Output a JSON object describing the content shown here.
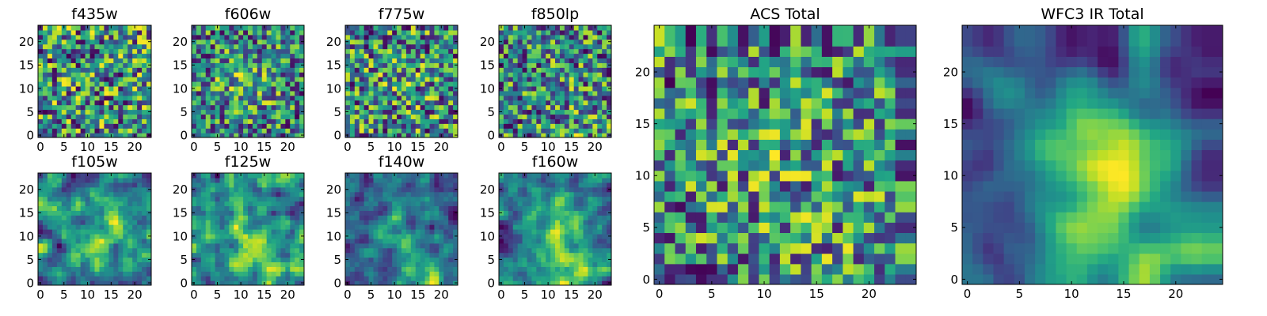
{
  "chart_data": [
    {
      "id": "f435w",
      "type": "heatmap",
      "title": "f435w",
      "grid": 24,
      "xticks": [
        0,
        5,
        10,
        15,
        20
      ],
      "yticks": [
        0,
        5,
        10,
        15,
        20
      ],
      "xlim": [
        -0.5,
        23.5
      ],
      "ylim": [
        -0.5,
        23.5
      ],
      "colormap": "viridis",
      "texture": "fine noise",
      "seed": 11,
      "smooth": 0,
      "center_boost": 0,
      "bottom_boost": 0
    },
    {
      "id": "f606w",
      "type": "heatmap",
      "title": "f606w",
      "grid": 24,
      "xticks": [
        0,
        5,
        10,
        15,
        20
      ],
      "yticks": [
        0,
        5,
        10,
        15,
        20
      ],
      "xlim": [
        -0.5,
        23.5
      ],
      "ylim": [
        -0.5,
        23.5
      ],
      "colormap": "viridis",
      "texture": "fine noise, faint central brightening",
      "seed": 23,
      "smooth": 0,
      "center_boost": 0.25,
      "bottom_boost": 0
    },
    {
      "id": "f775w",
      "type": "heatmap",
      "title": "f775w",
      "grid": 24,
      "xticks": [
        0,
        5,
        10,
        15,
        20
      ],
      "yticks": [
        0,
        5,
        10,
        15,
        20
      ],
      "xlim": [
        -0.5,
        23.5
      ],
      "ylim": [
        -0.5,
        23.5
      ],
      "colormap": "viridis",
      "texture": "fine noise",
      "seed": 37,
      "smooth": 0,
      "center_boost": 0.05,
      "bottom_boost": 0
    },
    {
      "id": "f850lp",
      "type": "heatmap",
      "title": "f850lp",
      "grid": 24,
      "xticks": [
        0,
        5,
        10,
        15,
        20
      ],
      "yticks": [
        0,
        5,
        10,
        15,
        20
      ],
      "xlim": [
        -0.5,
        23.5
      ],
      "ylim": [
        -0.5,
        23.5
      ],
      "colormap": "viridis",
      "texture": "fine noise",
      "seed": 41,
      "smooth": 0,
      "center_boost": 0.05,
      "bottom_boost": 0.1
    },
    {
      "id": "f105w",
      "type": "heatmap",
      "title": "f105w",
      "grid": 24,
      "xticks": [
        0,
        5,
        10,
        15,
        20
      ],
      "yticks": [
        0,
        5,
        10,
        15,
        20
      ],
      "xlim": [
        -0.5,
        23.5
      ],
      "ylim": [
        -0.5,
        23.5
      ],
      "colormap": "viridis",
      "texture": "smooth blotchy",
      "seed": 53,
      "smooth": 1,
      "center_boost": 0.15,
      "bottom_boost": 0.05
    },
    {
      "id": "f125w",
      "type": "heatmap",
      "title": "f125w",
      "grid": 24,
      "xticks": [
        0,
        5,
        10,
        15,
        20
      ],
      "yticks": [
        0,
        5,
        10,
        15,
        20
      ],
      "xlim": [
        -0.5,
        23.5
      ],
      "ylim": [
        -0.5,
        23.5
      ],
      "colormap": "viridis",
      "texture": "smooth blotchy",
      "seed": 67,
      "smooth": 1,
      "center_boost": 0.15,
      "bottom_boost": 0.15
    },
    {
      "id": "f140w",
      "type": "heatmap",
      "title": "f140w",
      "grid": 24,
      "xticks": [
        0,
        5,
        10,
        15,
        20
      ],
      "yticks": [
        0,
        5,
        10,
        15,
        20
      ],
      "xlim": [
        -0.5,
        23.5
      ],
      "ylim": [
        -0.5,
        23.5
      ],
      "colormap": "viridis",
      "texture": "smooth, bright bottom-centre",
      "seed": 79,
      "smooth": 1,
      "center_boost": 0.2,
      "bottom_boost": 0.35
    },
    {
      "id": "f160w",
      "type": "heatmap",
      "title": "f160w",
      "grid": 24,
      "xticks": [
        0,
        5,
        10,
        15,
        20
      ],
      "yticks": [
        0,
        5,
        10,
        15,
        20
      ],
      "xlim": [
        -0.5,
        23.5
      ],
      "ylim": [
        -0.5,
        23.5
      ],
      "colormap": "viridis",
      "texture": "smooth, darker, bright bottom-centre",
      "seed": 83,
      "smooth": 1,
      "center_boost": 0.3,
      "bottom_boost": 0.3
    },
    {
      "id": "acs-total",
      "type": "heatmap",
      "title": "ACS Total",
      "grid": 24,
      "xticks": [
        0,
        5,
        10,
        15,
        20
      ],
      "yticks": [
        0,
        5,
        10,
        15,
        20
      ],
      "xlim": [
        -0.5,
        24.5
      ],
      "ylim": [
        -0.5,
        24.5
      ],
      "colormap": "viridis",
      "texture": "noise, mostly green-yellow",
      "seed": 97,
      "smooth": 0,
      "center_boost": 0.1,
      "bottom_boost": 0.1
    },
    {
      "id": "wfc3-ir-total",
      "type": "heatmap",
      "title": "WFC3 IR Total",
      "grid": 24,
      "xticks": [
        0,
        5,
        10,
        15,
        20
      ],
      "yticks": [
        0,
        5,
        10,
        15,
        20
      ],
      "xlim": [
        -0.5,
        24.5
      ],
      "ylim": [
        -0.5,
        24.5
      ],
      "colormap": "viridis",
      "texture": "smooth, bright centre and bottom",
      "seed": 101,
      "smooth": 2,
      "center_boost": 0.45,
      "bottom_boost": 0.4
    }
  ]
}
